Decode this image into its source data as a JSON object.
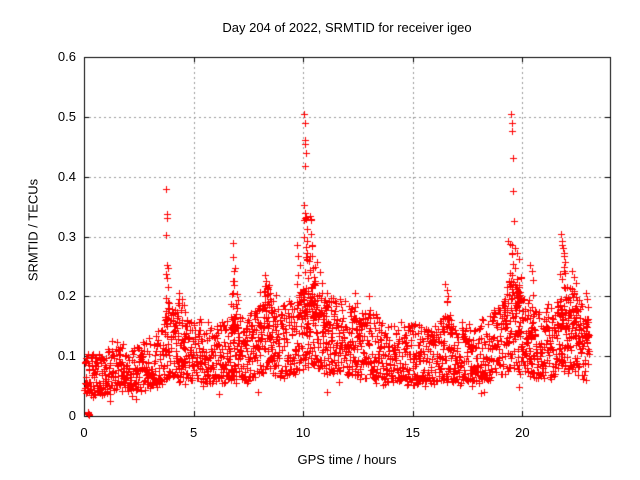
{
  "window": {
    "title": "Day 204 of 2022, SRMTID for receiver igeo"
  },
  "chart_data": {
    "type": "scatter",
    "title": "Day 204 of 2022, SRMTID for receiver igeo",
    "xlabel": "GPS time / hours",
    "ylabel": "SRMTID / TECUs",
    "xlim": [
      0,
      24
    ],
    "ylim": [
      0,
      0.6
    ],
    "xticks": {
      "values": [
        0,
        5,
        10,
        15,
        20
      ],
      "labels": [
        "0",
        "5",
        "10",
        "15",
        "20"
      ]
    },
    "yticks": {
      "values": [
        0,
        0.1,
        0.2,
        0.3,
        0.4,
        0.5,
        0.6
      ],
      "labels": [
        "0",
        "0.1",
        "0.2",
        "0.3",
        "0.4",
        "0.5",
        "0.6"
      ]
    },
    "grid": true,
    "grid_style": "dotted",
    "legend": null,
    "series_name": "SRMTID",
    "marker": {
      "shape": "plus",
      "color": "#ff0000",
      "size": 7
    },
    "colors": {
      "axis": "#000000",
      "grid": "#9a9a9a",
      "background": "#ffffff",
      "text": "#000000"
    },
    "time_range_hours": [
      0,
      23.05
    ],
    "baseline_profile": {
      "t": [
        0,
        0.5,
        1,
        1.5,
        2,
        2.5,
        3,
        3.5,
        3.8,
        4,
        4.5,
        5,
        5.5,
        6,
        6.5,
        7,
        7.5,
        8,
        8.5,
        9,
        9.5,
        10,
        10.5,
        11,
        11.5,
        12,
        12.5,
        13,
        13.5,
        14,
        14.5,
        15,
        15.5,
        16,
        16.5,
        17,
        17.5,
        18,
        18.5,
        19,
        19.5,
        20,
        20.5,
        21,
        21.5,
        22,
        22.5,
        23.05
      ],
      "median": [
        0.072,
        0.066,
        0.072,
        0.082,
        0.078,
        0.082,
        0.088,
        0.096,
        0.12,
        0.115,
        0.108,
        0.105,
        0.103,
        0.1,
        0.105,
        0.112,
        0.108,
        0.125,
        0.142,
        0.122,
        0.125,
        0.14,
        0.148,
        0.135,
        0.13,
        0.125,
        0.12,
        0.115,
        0.105,
        0.1,
        0.1,
        0.1,
        0.098,
        0.1,
        0.11,
        0.1,
        0.1,
        0.105,
        0.11,
        0.12,
        0.15,
        0.13,
        0.115,
        0.115,
        0.128,
        0.138,
        0.132,
        0.112
      ]
    },
    "spike_clusters": [
      [
        3.8,
        0.1,
        0.3,
        12
      ],
      [
        4.4,
        0.35,
        0.21,
        22
      ],
      [
        6.85,
        0.18,
        0.26,
        16
      ],
      [
        7.1,
        0.4,
        0.2,
        22
      ],
      [
        8.3,
        0.45,
        0.225,
        36
      ],
      [
        9.75,
        0.2,
        0.26,
        14
      ],
      [
        10.1,
        0.12,
        0.4,
        20
      ],
      [
        10.38,
        0.22,
        0.31,
        26
      ],
      [
        10.75,
        0.3,
        0.24,
        22
      ],
      [
        11.2,
        0.35,
        0.2,
        18
      ],
      [
        12.4,
        0.3,
        0.19,
        14
      ],
      [
        16.55,
        0.3,
        0.2,
        16
      ],
      [
        19.55,
        0.35,
        0.285,
        44
      ],
      [
        19.95,
        0.3,
        0.24,
        20
      ],
      [
        20.45,
        0.28,
        0.225,
        18
      ],
      [
        21.85,
        0.25,
        0.275,
        30
      ],
      [
        22.35,
        0.3,
        0.22,
        24
      ],
      [
        22.95,
        0.12,
        0.185,
        10
      ]
    ],
    "notable_points": [
      [
        0.17,
        0.003
      ],
      [
        0.2,
        0.005
      ],
      [
        0.23,
        0.004
      ],
      [
        0.19,
        0.007
      ],
      [
        0.21,
        0.002
      ],
      [
        0.25,
        0.004
      ],
      [
        3.76,
        0.38
      ],
      [
        3.77,
        0.337
      ],
      [
        3.78,
        0.331
      ],
      [
        3.76,
        0.302
      ],
      [
        3.8,
        0.252
      ],
      [
        3.82,
        0.215
      ],
      [
        3.74,
        0.198
      ],
      [
        3.9,
        0.178
      ],
      [
        4.32,
        0.205
      ],
      [
        4.45,
        0.195
      ],
      [
        4.55,
        0.185
      ],
      [
        6.8,
        0.289
      ],
      [
        6.82,
        0.266
      ],
      [
        6.84,
        0.243
      ],
      [
        6.86,
        0.225
      ],
      [
        6.78,
        0.205
      ],
      [
        8.05,
        0.208
      ],
      [
        8.25,
        0.235
      ],
      [
        8.3,
        0.225
      ],
      [
        8.4,
        0.215
      ],
      [
        8.5,
        0.205
      ],
      [
        9.7,
        0.285
      ],
      [
        9.78,
        0.268
      ],
      [
        9.85,
        0.252
      ],
      [
        10.06,
        0.505
      ],
      [
        10.08,
        0.49
      ],
      [
        10.1,
        0.462
      ],
      [
        10.1,
        0.455
      ],
      [
        10.12,
        0.44
      ],
      [
        10.08,
        0.418
      ],
      [
        10.05,
        0.352
      ],
      [
        10.1,
        0.34
      ],
      [
        10.13,
        0.33
      ],
      [
        10.16,
        0.312
      ],
      [
        10.04,
        0.3
      ],
      [
        10.18,
        0.292
      ],
      [
        10.32,
        0.335
      ],
      [
        10.34,
        0.33
      ],
      [
        10.36,
        0.327
      ],
      [
        10.38,
        0.305
      ],
      [
        10.4,
        0.285
      ],
      [
        10.42,
        0.268
      ],
      [
        10.45,
        0.248
      ],
      [
        10.5,
        0.232
      ],
      [
        10.55,
        0.222
      ],
      [
        10.65,
        0.258
      ],
      [
        10.75,
        0.24
      ],
      [
        10.85,
        0.222
      ],
      [
        11.1,
        0.205
      ],
      [
        11.25,
        0.198
      ],
      [
        12.35,
        0.205
      ],
      [
        13.0,
        0.2
      ],
      [
        16.45,
        0.22
      ],
      [
        16.55,
        0.21
      ],
      [
        16.6,
        0.2
      ],
      [
        19.5,
        0.505
      ],
      [
        19.53,
        0.49
      ],
      [
        19.54,
        0.476
      ],
      [
        19.56,
        0.432
      ],
      [
        19.58,
        0.376
      ],
      [
        19.6,
        0.326
      ],
      [
        19.35,
        0.292
      ],
      [
        19.45,
        0.288
      ],
      [
        19.55,
        0.285
      ],
      [
        19.65,
        0.28
      ],
      [
        19.75,
        0.272
      ],
      [
        19.85,
        0.262
      ],
      [
        20.35,
        0.252
      ],
      [
        20.42,
        0.242
      ],
      [
        20.5,
        0.228
      ],
      [
        21.75,
        0.305
      ],
      [
        21.8,
        0.292
      ],
      [
        21.82,
        0.285
      ],
      [
        21.85,
        0.28
      ],
      [
        21.88,
        0.272
      ],
      [
        21.9,
        0.268
      ],
      [
        21.95,
        0.258
      ],
      [
        22.25,
        0.242
      ],
      [
        22.35,
        0.232
      ],
      [
        22.45,
        0.222
      ],
      [
        22.9,
        0.205
      ],
      [
        22.95,
        0.195
      ],
      [
        23.0,
        0.182
      ]
    ],
    "noise": {
      "seed": 204204,
      "points_per_hour": 96,
      "low_factor": 0.55,
      "skew": 1.4,
      "jitter": 0.012,
      "dip_chance": 0.012,
      "dip_factor": 0.55
    }
  }
}
